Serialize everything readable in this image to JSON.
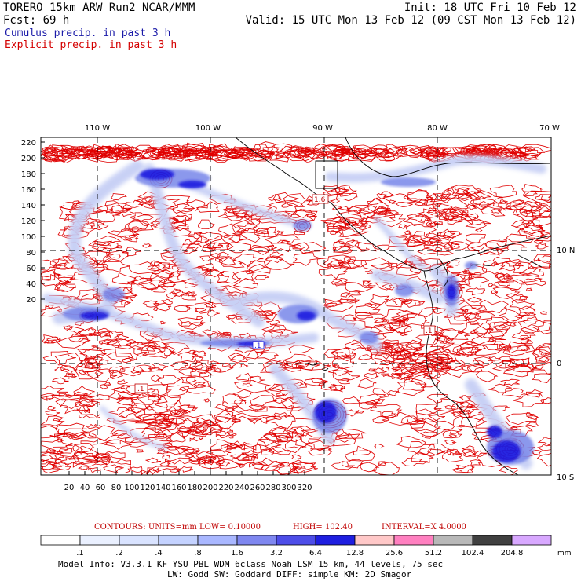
{
  "header": {
    "line1_left": "TORERO  15km ARW   Run2    NCAR/MMM",
    "line1_right": "Init: 18 UTC Fri 10 Feb 12",
    "line2_left": "Fcst:   69 h",
    "line2_right": "Valid: 15 UTC Mon 13 Feb 12 (09 CST Mon 13 Feb 12)",
    "line3": "Cumulus precip. in past 3 h",
    "line4": "Explicit precip. in past 3 h",
    "colors": {
      "cumulus": "#1a1aa8",
      "explicit": "#d40000"
    }
  },
  "map": {
    "top_lon_labels": [
      "110 W",
      "100 W",
      "90 W",
      "80 W",
      "70 W"
    ],
    "right_lat_labels": [
      "10 N",
      "0",
      "10 S"
    ],
    "left_y_ticks": [
      "220",
      "200",
      "180",
      "160",
      "140",
      "120",
      "100",
      "80",
      "60",
      "40",
      "20"
    ],
    "bottom_x_ticks": [
      "20",
      "40",
      "60",
      "80",
      "100",
      "120",
      "140",
      "160",
      "180",
      "200",
      "220",
      "240",
      "260",
      "280",
      "300",
      "320"
    ],
    "contour_labels": [
      "1.6",
      ".1",
      ".1",
      ".1"
    ],
    "colors": {
      "explicit_contour": "#e00000",
      "precip_light": "#c6cff5",
      "precip_mid": "#7f8cf0",
      "precip_heavy": "#2020e0",
      "coast": "#000000"
    }
  },
  "legend": {
    "caption_units": "CONTOURS:  UNITS=mm  LOW= 0.10000",
    "caption_high": "HIGH=  102.40",
    "caption_interval": "INTERVAL=X  4.0000",
    "unit": "mm",
    "labels": [
      ".1",
      ".2",
      ".4",
      ".8",
      "1.6",
      "3.2",
      "6.4",
      "12.8",
      "25.6",
      "51.2",
      "102.4",
      "204.8"
    ],
    "colors": [
      "#ffffff",
      "#eaf0ff",
      "#d9e3ff",
      "#c4d2ff",
      "#a9b7ff",
      "#7f87f0",
      "#4d4de8",
      "#1e1ee0",
      "#ffc8c8",
      "#ff80c0",
      "#b8b8b8",
      "#404040",
      "#d8a8ff"
    ]
  },
  "footer": {
    "line1": "Model Info: V3.3.1   KF     YSU PBL  WDM 6class  Noah LSM  15 km,   44 levels,   75 sec",
    "line2": "LW: Godd SW: Goddard DIFF: simple KM: 2D Smagor"
  }
}
